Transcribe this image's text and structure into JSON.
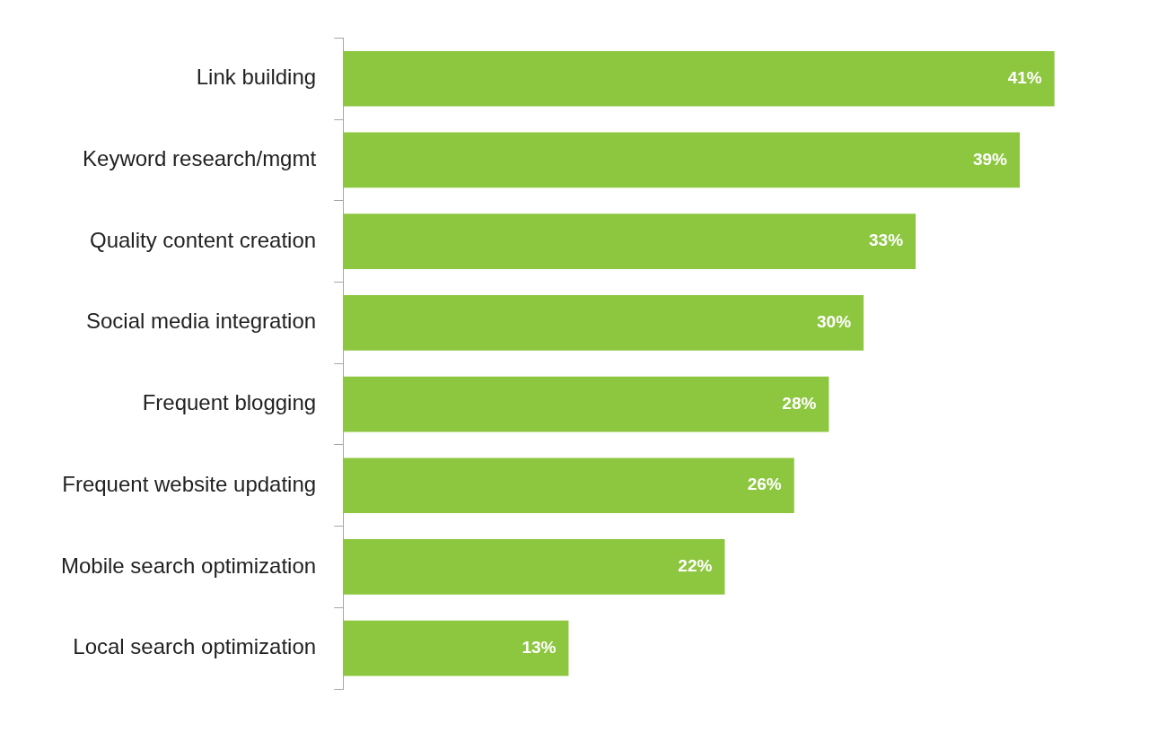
{
  "chart_data": {
    "type": "bar",
    "orientation": "horizontal",
    "categories": [
      "Link building",
      "Keyword research/mgmt",
      "Quality content creation",
      "Social media integration",
      "Frequent blogging",
      "Frequent website updating",
      "Mobile search optimization",
      "Local search optimization"
    ],
    "values": [
      41,
      39,
      33,
      30,
      28,
      26,
      22,
      13
    ],
    "value_labels": [
      "41%",
      "39%",
      "33%",
      "30%",
      "28%",
      "26%",
      "22%",
      "13%"
    ],
    "color": "#8dc63f",
    "tick_labels": "y"
  }
}
